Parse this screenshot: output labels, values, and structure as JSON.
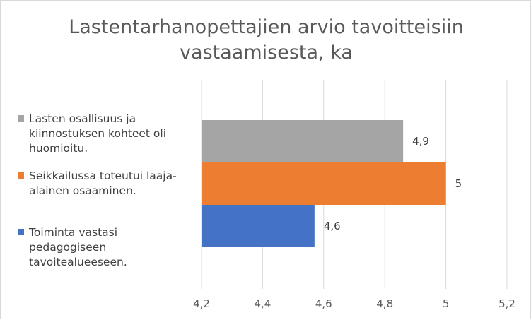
{
  "chart_data": {
    "type": "bar",
    "orientation": "horizontal",
    "title_lines": [
      "Lastentarhanopettajien arvio tavoitteisiin",
      "vastaamisesta, ka"
    ],
    "xlim": [
      4.2,
      5.2
    ],
    "x_ticks": [
      "4,2",
      "4,4",
      "4,6",
      "4,8",
      "5",
      "5,2"
    ],
    "x_tick_values": [
      4.2,
      4.4,
      4.6,
      4.8,
      5.0,
      5.2
    ],
    "grid": "vertical",
    "legend_position": "left",
    "series": [
      {
        "name": "Lasten osallisuus ja kiinnostuksen kohteet oli huomioitu.",
        "value": 4.86,
        "label": "4,9",
        "color": "#a5a5a5",
        "legend_lines": [
          "Lasten osallisuus ja",
          "kiinnostuksen kohteet oli",
          "huomioitu."
        ]
      },
      {
        "name": "Seikkailussa toteutui laaja-alainen osaaminen.",
        "value": 5.0,
        "label": "5",
        "color": "#ed7d31",
        "legend_lines": [
          "Seikkailussa toteutui laaja-",
          "alainen osaaminen."
        ]
      },
      {
        "name": "Toiminta vastasi pedagogiseen tavoitealueeseen.",
        "value": 4.57,
        "label": "4,6",
        "color": "#4472c4",
        "legend_lines": [
          "Toiminta vastasi",
          "pedagogiseen",
          "tavoitealueeseen."
        ]
      }
    ]
  }
}
